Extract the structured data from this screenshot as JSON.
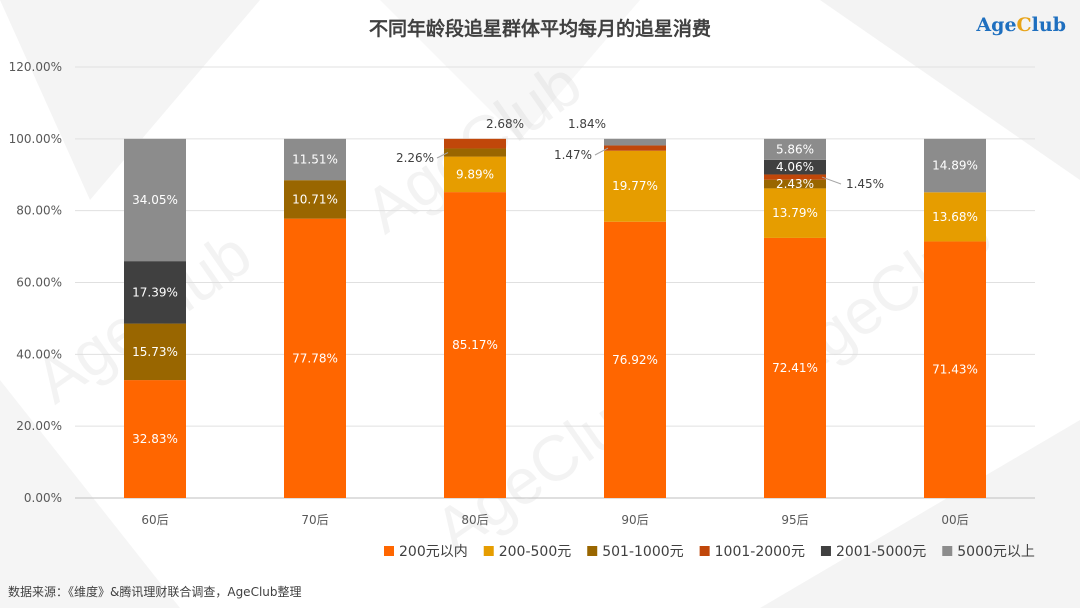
{
  "title": "不同年龄段追星群体平均每月的追星消费",
  "logo": {
    "age": "Age",
    "c": "C",
    "lub": "lub"
  },
  "watermark": "AgeClub",
  "source": "数据来源：《维度》&腾讯理财联合调查，AgeClub整理",
  "colors": {
    "s200": "#ff6600",
    "s500": "#e69d00",
    "s1000": "#996600",
    "s2000": "#c0470a",
    "s5000": "#404040",
    "s5000p": "#8c8c8c"
  },
  "chart_data": {
    "type": "bar",
    "stacked": true,
    "categories": [
      "60后",
      "70后",
      "80后",
      "90后",
      "95后",
      "00后"
    ],
    "ylim": [
      0,
      120
    ],
    "yticks": [
      "0.00%",
      "20.00%",
      "40.00%",
      "60.00%",
      "80.00%",
      "100.00%",
      "120.00%"
    ],
    "grid": true,
    "legend_position": "bottom-right",
    "series": [
      {
        "name": "200元以内",
        "color_key": "s200",
        "values": [
          32.83,
          77.78,
          85.17,
          76.92,
          72.41,
          71.43
        ],
        "labels": [
          "32.83%",
          "77.78%",
          "85.17%",
          "76.92%",
          "72.41%",
          "71.43%"
        ]
      },
      {
        "name": "200-500元",
        "color_key": "s500",
        "values": [
          0,
          0,
          9.89,
          19.77,
          13.79,
          13.68
        ],
        "labels": [
          "",
          "",
          "9.89%",
          "19.77%",
          "13.79%",
          "13.68%"
        ]
      },
      {
        "name": "501-1000元",
        "color_key": "s1000",
        "values": [
          15.73,
          10.71,
          2.26,
          0,
          2.43,
          0
        ],
        "labels": [
          "15.73%",
          "10.71%",
          "2.26%",
          "",
          "2.43%",
          ""
        ]
      },
      {
        "name": "1001-2000元",
        "color_key": "s2000",
        "values": [
          0,
          0,
          2.68,
          1.47,
          1.45,
          0
        ],
        "labels": [
          "",
          "",
          "2.68%",
          "1.47%",
          "1.45%",
          ""
        ]
      },
      {
        "name": "2001-5000元",
        "color_key": "s5000",
        "values": [
          17.39,
          0,
          0,
          0,
          4.06,
          0
        ],
        "labels": [
          "17.39%",
          "",
          "",
          "",
          "4.06%",
          ""
        ]
      },
      {
        "name": "5000元以上",
        "color_key": "s5000p",
        "values": [
          34.05,
          11.51,
          0,
          1.84,
          5.86,
          14.89
        ],
        "labels": [
          "34.05%",
          "11.51%",
          "",
          "1.84%",
          "5.86%",
          "14.89%"
        ]
      }
    ]
  }
}
